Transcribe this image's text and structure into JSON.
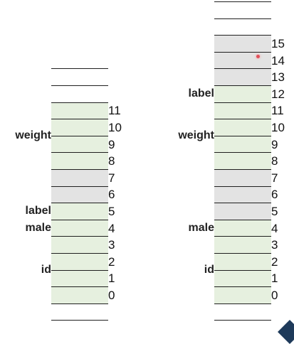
{
  "colors": {
    "field": "#e6f0df",
    "padding": "#e3e3e3",
    "empty": "#ffffff",
    "line": "#1f1f1f"
  },
  "left_stack": {
    "cells": [
      {
        "fill": "empty"
      },
      {
        "fill": "empty"
      },
      {
        "index": "0",
        "fill": "field"
      },
      {
        "index": "1",
        "fill": "field"
      },
      {
        "index": "2",
        "fill": "field"
      },
      {
        "index": "3",
        "fill": "field"
      },
      {
        "index": "4",
        "fill": "field"
      },
      {
        "index": "5",
        "fill": "field"
      },
      {
        "index": "6",
        "fill": "padding"
      },
      {
        "index": "7",
        "fill": "padding"
      },
      {
        "index": "8",
        "fill": "field"
      },
      {
        "index": "9",
        "fill": "field"
      },
      {
        "index": "10",
        "fill": "field"
      },
      {
        "index": "11",
        "fill": "field"
      },
      {
        "fill": "empty"
      },
      {
        "fill": "empty"
      }
    ],
    "labels": [
      {
        "text": "id",
        "from": 2,
        "to": 5
      },
      {
        "text": "male",
        "from": 6,
        "to": 6
      },
      {
        "text": "label",
        "from": 7,
        "to": 7
      },
      {
        "text": "weight",
        "from": 10,
        "to": 13
      }
    ],
    "border_cells": [
      12,
      13
    ]
  },
  "right_stack": {
    "cells": [
      {
        "fill": "empty"
      },
      {
        "fill": "empty"
      },
      {
        "index": "0",
        "fill": "field"
      },
      {
        "index": "1",
        "fill": "field"
      },
      {
        "index": "2",
        "fill": "field"
      },
      {
        "index": "3",
        "fill": "field"
      },
      {
        "index": "4",
        "fill": "field"
      },
      {
        "index": "5",
        "fill": "padding"
      },
      {
        "index": "6",
        "fill": "padding"
      },
      {
        "index": "7",
        "fill": "padding"
      },
      {
        "index": "8",
        "fill": "field"
      },
      {
        "index": "9",
        "fill": "field"
      },
      {
        "index": "10",
        "fill": "field"
      },
      {
        "index": "11",
        "fill": "field"
      },
      {
        "index": "12",
        "fill": "field"
      },
      {
        "index": "13",
        "fill": "padding"
      },
      {
        "index": "14",
        "fill": "padding"
      },
      {
        "index": "15",
        "fill": "padding"
      },
      {
        "fill": "empty"
      },
      {
        "fill": "empty"
      }
    ],
    "labels": [
      {
        "text": "id",
        "from": 2,
        "to": 5
      },
      {
        "text": "male",
        "from": 6,
        "to": 6
      },
      {
        "text": "weight",
        "from": 10,
        "to": 13
      },
      {
        "text": "label",
        "from": 14,
        "to": 14
      }
    ]
  }
}
